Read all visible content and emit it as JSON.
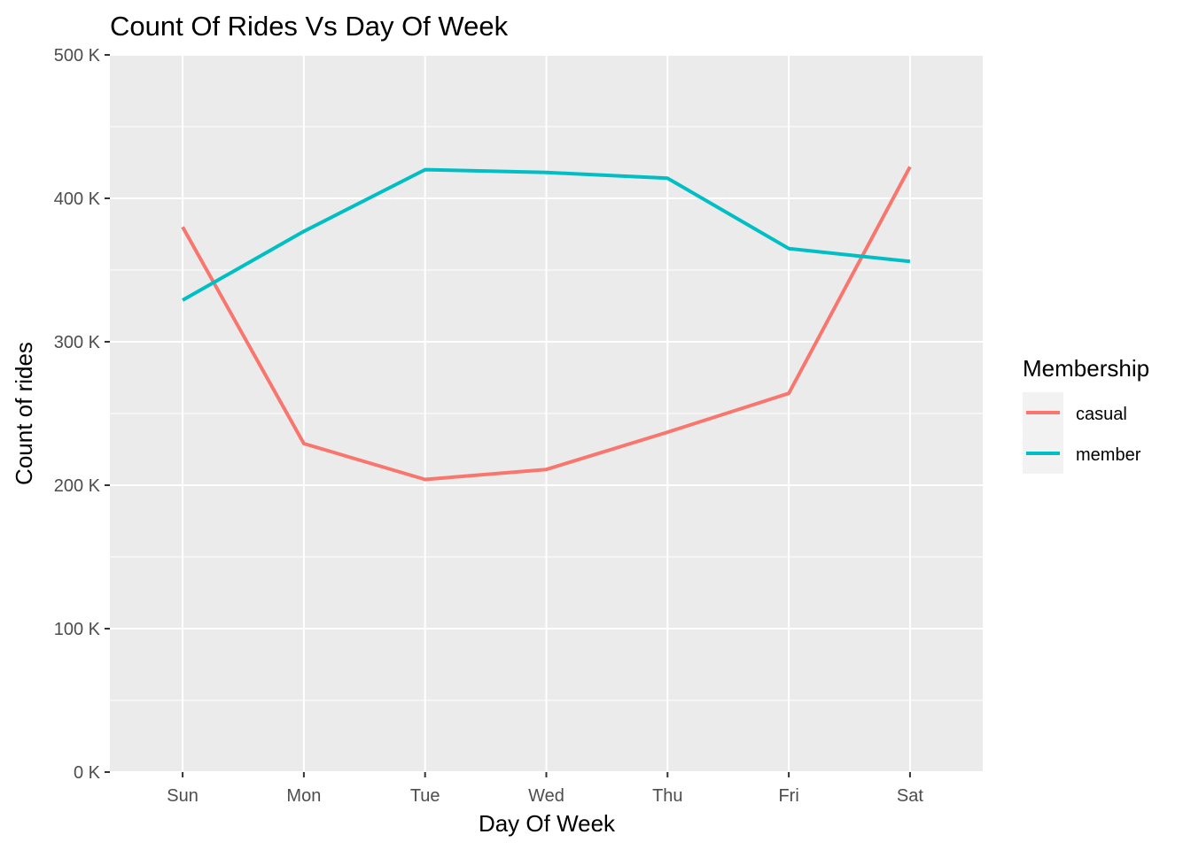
{
  "chart_data": {
    "type": "line",
    "title": "Count Of Rides Vs Day Of Week",
    "xlabel": "Day Of Week",
    "ylabel": "Count of rides",
    "categories": [
      "Sun",
      "Mon",
      "Tue",
      "Wed",
      "Thu",
      "Fri",
      "Sat"
    ],
    "ylim": [
      0,
      500000
    ],
    "y_ticks": [
      {
        "value": 0,
        "label": "0 K"
      },
      {
        "value": 100000,
        "label": "100 K"
      },
      {
        "value": 200000,
        "label": "200 K"
      },
      {
        "value": 300000,
        "label": "300 K"
      },
      {
        "value": 400000,
        "label": "400 K"
      },
      {
        "value": 500000,
        "label": "500 K"
      }
    ],
    "series": [
      {
        "name": "casual",
        "color": "#F8766D",
        "values": [
          380000,
          229000,
          204000,
          211000,
          237000,
          264000,
          422000
        ]
      },
      {
        "name": "member",
        "color": "#00BFC4",
        "values": [
          329000,
          377000,
          420000,
          418000,
          414000,
          365000,
          356000
        ]
      }
    ],
    "legend": {
      "title": "Membership",
      "placement": "right"
    },
    "grid": true,
    "panel_background": "#EBEBEB",
    "gridline_color": "#FFFFFF"
  }
}
